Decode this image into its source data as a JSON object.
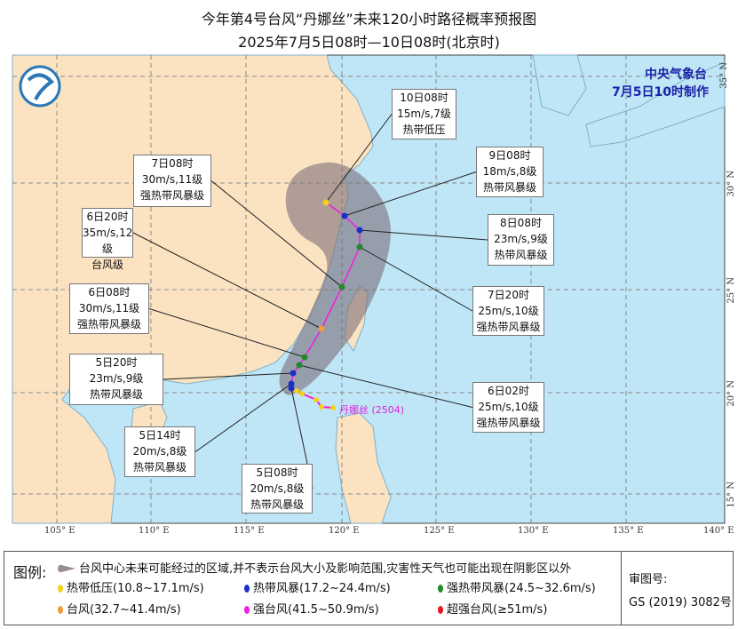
{
  "title": "今年第4号台风“丹娜丝”未来120小时路径概率预报图",
  "subtitle": "2025年7月5日08时—10日08时(北京时)",
  "agency": "中央气象台",
  "issued": "7月5日10时制作",
  "typhoon_label": "丹娜丝 (2504)",
  "lon_ticks": [
    "105° E",
    "110° E",
    "115° E",
    "120° E",
    "125° E",
    "130° E",
    "135° E",
    "140° E"
  ],
  "lat_ticks": [
    "35° N",
    "30° N",
    "25° N",
    "20° N",
    "15° N"
  ],
  "forecast_points": [
    {
      "time": "10日08时",
      "wind": "15m/s,7级",
      "grade": "热带低压",
      "color": "#f2d21b"
    },
    {
      "time": "9日08时",
      "wind": "18m/s,8级",
      "grade": "热带风暴级",
      "color": "#1b2fc9"
    },
    {
      "time": "8日08时",
      "wind": "23m/s,9级",
      "grade": "热带风暴级",
      "color": "#1b2fc9"
    },
    {
      "time": "7日20时",
      "wind": "25m/s,10级",
      "grade": "强热带风暴级",
      "color": "#1f8a2a"
    },
    {
      "time": "7日08时",
      "wind": "30m/s,11级",
      "grade": "强热带风暴级",
      "color": "#1f8a2a"
    },
    {
      "time": "6日20时",
      "wind": "35m/s,12级",
      "grade": "台风级",
      "color": "#f59a3c"
    },
    {
      "time": "6日08时",
      "wind": "30m/s,11级",
      "grade": "强热带风暴级",
      "color": "#1f8a2a"
    },
    {
      "time": "6日02时",
      "wind": "25m/s,10级",
      "grade": "强热带风暴级",
      "color": "#1f8a2a"
    },
    {
      "time": "5日20时",
      "wind": "23m/s,9级",
      "grade": "热带风暴级",
      "color": "#1b2fc9"
    },
    {
      "time": "5日14时",
      "wind": "20m/s,8级",
      "grade": "热带风暴级",
      "color": "#1b2fc9"
    },
    {
      "time": "5日08时",
      "wind": "20m/s,8级",
      "grade": "热带风暴级",
      "color": "#1b2fc9"
    }
  ],
  "legend": {
    "title": "图例:",
    "cone_text": "台风中心未来可能经过的区域,并不表示台风大小及影响范围,灾害性天气也可能出现在阴影区以外",
    "items": [
      {
        "label": "热带低压(10.8~17.1m/s)",
        "color": "#f2d21b"
      },
      {
        "label": "热带风暴(17.2~24.4m/s)",
        "color": "#1b2fc9"
      },
      {
        "label": "强热带风暴(24.5~32.6m/s)",
        "color": "#1f8a2a"
      },
      {
        "label": "台风(32.7~41.4m/s)",
        "color": "#f59a3c"
      },
      {
        "label": "强台风(41.5~50.9m/s)",
        "color": "#f01ce0"
      },
      {
        "label": "超强台风(≥51m/s)",
        "color": "#e8141c"
      }
    ],
    "review_label": "审图号:",
    "review_no": "GS (2019) 3082号"
  }
}
